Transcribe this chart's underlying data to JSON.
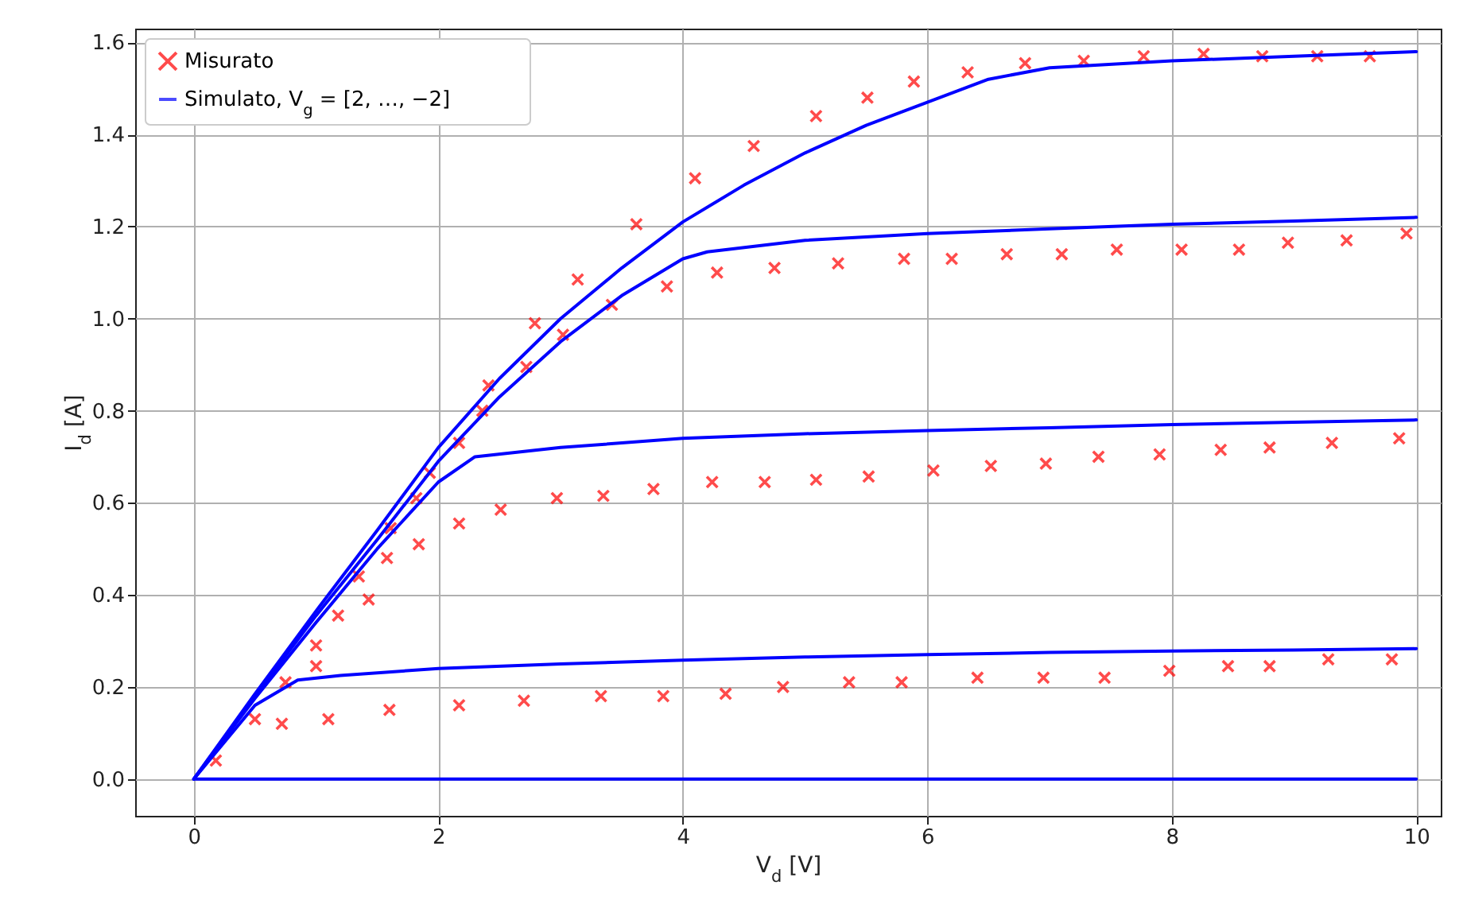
{
  "chart_data": {
    "type": "line",
    "xlabel": "V$_{d}$ [V]",
    "ylabel": "I$_{d}$ [A]",
    "xlim": [
      -0.48,
      10.2
    ],
    "ylim": [
      -0.08,
      1.63
    ],
    "xticks": [
      0,
      2,
      4,
      6,
      8,
      10
    ],
    "yticks": [
      {
        "value": 0,
        "label": "0.0"
      },
      {
        "value": 0.2,
        "label": "0.2"
      },
      {
        "value": 0.4,
        "label": "0.4"
      },
      {
        "value": 0.6,
        "label": "0.6"
      },
      {
        "value": 0.8,
        "label": "0.8"
      },
      {
        "value": 1,
        "label": "1.0"
      },
      {
        "value": 1.2,
        "label": "1.2"
      },
      {
        "value": 1.4,
        "label": "1.4"
      },
      {
        "value": 1.6,
        "label": "1.6"
      }
    ],
    "grid": true,
    "legend": "top left",
    "series": [
      {
        "name": "Misurato",
        "type": "scatter",
        "marker": "cross",
        "color": "#ff0000",
        "x": [
          0.18,
          0.5,
          0.72,
          1.1,
          1.6,
          2.17,
          2.7,
          3.33,
          3.84,
          4.35,
          4.82,
          5.36,
          5.79,
          6.41,
          6.95,
          7.45,
          7.98,
          8.46,
          8.8,
          9.28,
          9.8,
          0.75,
          1.0,
          1.0,
          1.18,
          1.35,
          1.43,
          1.58,
          1.61,
          1.84,
          1.82,
          1.93,
          2.17,
          2.17,
          2.51,
          2.97,
          3.35,
          3.76,
          4.24,
          4.67,
          5.09,
          5.52,
          6.05,
          6.52,
          6.97,
          7.4,
          7.9,
          8.4,
          8.8,
          9.31,
          9.86,
          2.36,
          2.72,
          3.02,
          3.42,
          3.87,
          4.28,
          4.75,
          5.27,
          5.81,
          6.2,
          6.65,
          7.1,
          7.55,
          8.08,
          8.55,
          8.95,
          9.43,
          9.92,
          2.41,
          2.79,
          3.14,
          3.62,
          4.1,
          4.58,
          5.09,
          5.51,
          5.89,
          6.33,
          6.8,
          7.28,
          7.77,
          8.26,
          8.74,
          9.19,
          9.62
        ],
        "values": [
          0.04,
          0.13,
          0.12,
          0.13,
          0.15,
          0.16,
          0.17,
          0.18,
          0.18,
          0.185,
          0.2,
          0.21,
          0.21,
          0.22,
          0.22,
          0.22,
          0.235,
          0.245,
          0.245,
          0.26,
          0.26,
          0.21,
          0.29,
          0.245,
          0.355,
          0.44,
          0.39,
          0.48,
          0.545,
          0.51,
          0.61,
          0.665,
          0.73,
          0.555,
          0.585,
          0.61,
          0.615,
          0.63,
          0.645,
          0.645,
          0.65,
          0.657,
          0.67,
          0.68,
          0.685,
          0.7,
          0.705,
          0.715,
          0.72,
          0.73,
          0.74,
          0.8,
          0.895,
          0.965,
          1.03,
          1.07,
          1.1,
          1.11,
          1.12,
          1.13,
          1.13,
          1.14,
          1.14,
          1.15,
          1.15,
          1.15,
          1.165,
          1.17,
          1.185,
          0.855,
          0.99,
          1.085,
          1.205,
          1.305,
          1.375,
          1.44,
          1.48,
          1.515,
          1.535,
          1.555,
          1.56,
          1.57,
          1.575,
          1.57,
          1.57,
          1.57
        ]
      },
      {
        "name": "Simulato, V$_{g}$ = [2, …, −2]",
        "color": "#0000ff",
        "x": [
          0,
          0.5,
          1,
          1.5,
          2,
          2.5,
          3,
          3.5,
          4,
          4.5,
          5,
          5.5,
          6,
          6.5,
          7,
          8,
          9,
          10
        ],
        "values": [
          0,
          0.185,
          0.365,
          0.54,
          0.72,
          0.87,
          1.0,
          1.11,
          1.21,
          1.29,
          1.36,
          1.42,
          1.47,
          1.52,
          1.545,
          1.56,
          1.57,
          1.58
        ]
      },
      {
        "color": "#0000ff",
        "x": [
          0,
          0.5,
          1,
          1.5,
          2,
          2.5,
          3,
          3.5,
          4,
          4.2,
          5,
          6,
          7,
          8,
          9,
          10
        ],
        "values": [
          0,
          0.18,
          0.355,
          0.52,
          0.69,
          0.83,
          0.95,
          1.05,
          1.13,
          1.145,
          1.17,
          1.185,
          1.195,
          1.205,
          1.212,
          1.22
        ]
      },
      {
        "color": "#0000ff",
        "x": [
          0,
          0.5,
          1,
          1.5,
          2,
          2.3,
          3,
          4,
          5,
          6,
          7,
          8,
          9,
          10
        ],
        "values": [
          0,
          0.175,
          0.34,
          0.5,
          0.645,
          0.7,
          0.72,
          0.74,
          0.75,
          0.757,
          0.763,
          0.77,
          0.775,
          0.78
        ]
      },
      {
        "color": "#0000ff",
        "x": [
          0,
          0.5,
          0.85,
          1.2,
          2,
          3,
          4,
          5,
          6,
          7,
          8,
          9,
          10
        ],
        "values": [
          0,
          0.16,
          0.215,
          0.225,
          0.24,
          0.25,
          0.258,
          0.265,
          0.27,
          0.275,
          0.278,
          0.28,
          0.283
        ]
      },
      {
        "color": "#0000ff",
        "x": [
          0,
          10
        ],
        "values": [
          0,
          0
        ]
      }
    ]
  }
}
